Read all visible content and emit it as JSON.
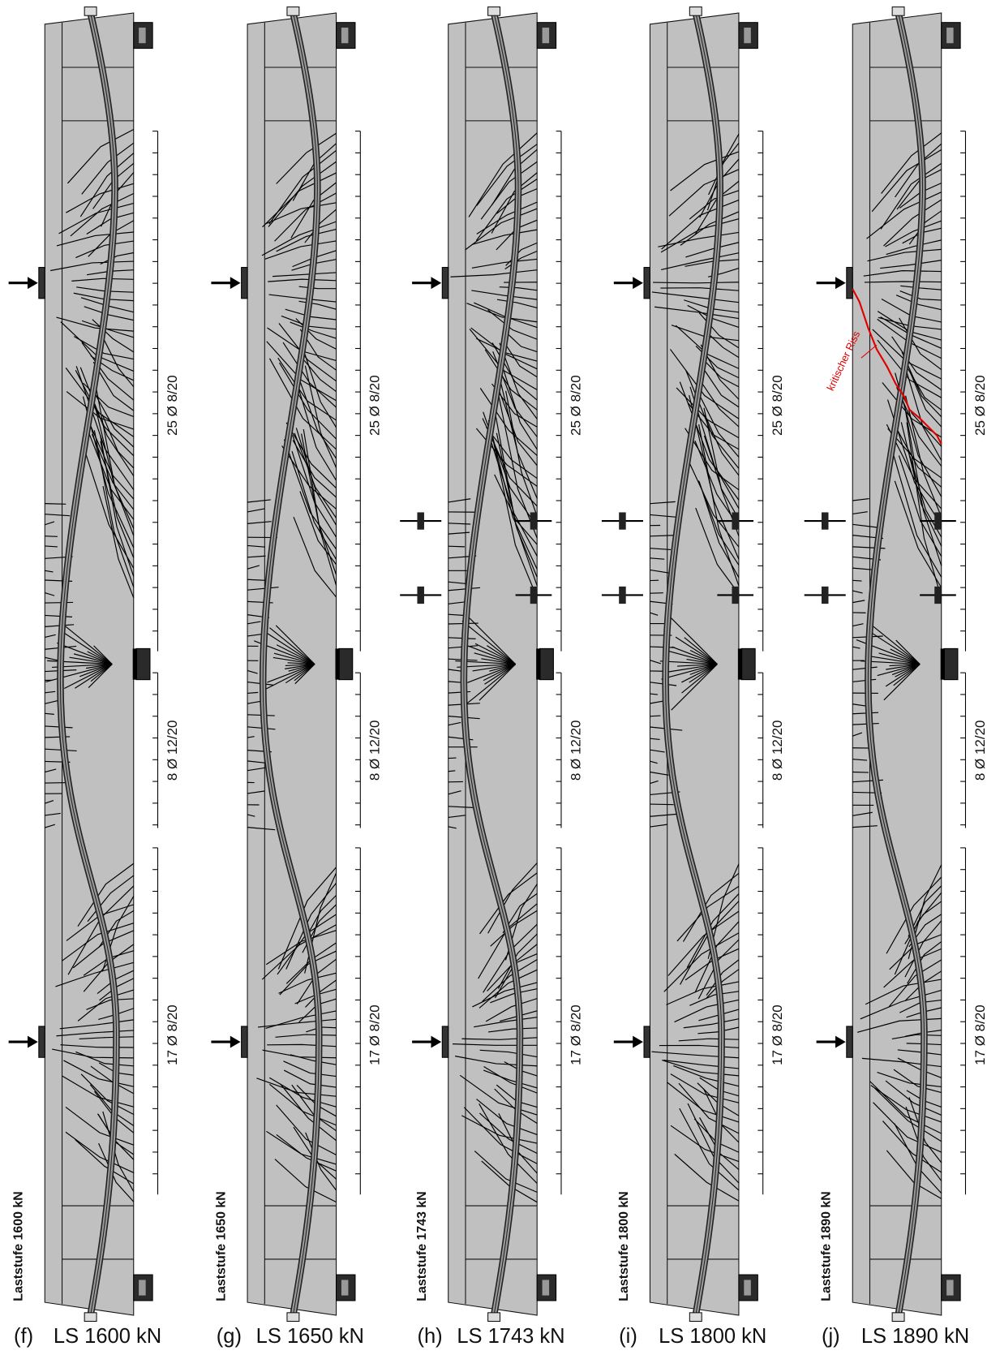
{
  "panels": [
    {
      "tag": "(f)",
      "caption": "LS 1600 kN",
      "side_label": "Laststufe 1600 kN",
      "stirrups": [
        "25 Ø 8/20",
        "8 Ø 12/20",
        "17 Ø 8/20"
      ]
    },
    {
      "tag": "(g)",
      "caption": "LS 1650 kN",
      "side_label": "Laststufe 1650 kN",
      "stirrups": [
        "25 Ø 8/20",
        "8 Ø 12/20",
        "17 Ø 8/20"
      ]
    },
    {
      "tag": "(h)",
      "caption": "LS 1743 kN",
      "side_label": "Laststufe 1743 kN",
      "stirrups": [
        "25 Ø 8/20",
        "8 Ø 12/20",
        "17 Ø 8/20"
      ]
    },
    {
      "tag": "(i)",
      "caption": "LS 1800 kN",
      "side_label": "Laststufe 1800 kN",
      "stirrups": [
        "25 Ø 8/20",
        "8 Ø 12/20",
        "17 Ø 8/20"
      ]
    },
    {
      "tag": "(j)",
      "caption": "LS 1890 kN",
      "side_label": "Laststufe 1890 kN",
      "stirrups": [
        "25 Ø 8/20",
        "8 Ø 12/20",
        "17 Ø 8/20"
      ],
      "annotation": "kritischer Riss"
    }
  ]
}
